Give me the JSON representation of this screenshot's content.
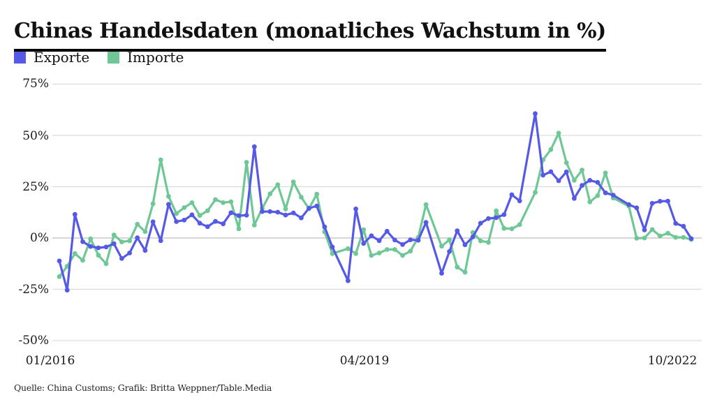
{
  "title": "Chinas Handelsdaten (monatliches Wachstum in %)",
  "source": "Quelle: China Customs; Grafik: Britta Weppner/Table.Media",
  "legend": [
    {
      "label": "Exporte",
      "color": "#5559e6"
    },
    {
      "label": "Importe",
      "color": "#6ec795"
    }
  ],
  "colors": {
    "grid": "#dcdcdc",
    "zero_line": "#c8c8c8",
    "text": "#111111"
  },
  "chart_data": {
    "type": "line",
    "title": "Chinas Handelsdaten (monatliches Wachstum in %)",
    "xlabel": "",
    "ylabel": "monatliches Wachstum in %",
    "ylim": [
      -50,
      75
    ],
    "grid": true,
    "legend_position": "top-left",
    "y_ticks": [
      "75%",
      "50%",
      "25%",
      "0%",
      "-25%",
      "-50%"
    ],
    "y_tick_values": [
      75,
      50,
      25,
      0,
      -25,
      -50
    ],
    "x_tick_labels": [
      "01/2016",
      "04/2019",
      "10/2022"
    ],
    "months": [
      "01/2016",
      "02/2016",
      "03/2016",
      "04/2016",
      "05/2016",
      "06/2016",
      "07/2016",
      "08/2016",
      "09/2016",
      "10/2016",
      "11/2016",
      "12/2016",
      "01/2017",
      "02/2017",
      "03/2017",
      "04/2017",
      "05/2017",
      "06/2017",
      "07/2017",
      "08/2017",
      "09/2017",
      "10/2017",
      "11/2017",
      "12/2017",
      "01/2018",
      "02/2018",
      "03/2018",
      "04/2018",
      "05/2018",
      "06/2018",
      "07/2018",
      "08/2018",
      "09/2018",
      "10/2018",
      "11/2018",
      "12/2018",
      "01/2019",
      "02/2019",
      "03/2019",
      "04/2019",
      "05/2019",
      "06/2019",
      "07/2019",
      "08/2019",
      "09/2019",
      "10/2019",
      "11/2019",
      "12/2019",
      "01/2020",
      "02/2020",
      "03/2020",
      "04/2020",
      "05/2020",
      "06/2020",
      "07/2020",
      "08/2020",
      "09/2020",
      "10/2020",
      "11/2020",
      "12/2020",
      "01/2021",
      "02/2021",
      "03/2021",
      "04/2021",
      "05/2021",
      "06/2021",
      "07/2021",
      "08/2021",
      "09/2021",
      "10/2021",
      "11/2021",
      "12/2021",
      "01/2022",
      "02/2022",
      "03/2022",
      "04/2022",
      "05/2022",
      "06/2022",
      "07/2022",
      "08/2022",
      "09/2022",
      "10/2022"
    ],
    "series": [
      {
        "name": "Exporte",
        "color": "#5559e6",
        "values": [
          -11.2,
          -25.4,
          11.5,
          -1.8,
          -4.1,
          -4.8,
          -4.4,
          -2.8,
          -10.0,
          -7.3,
          0.1,
          -6.1,
          7.9,
          -1.3,
          16.4,
          8.0,
          8.7,
          11.3,
          7.2,
          5.5,
          8.1,
          6.9,
          12.3,
          10.9,
          11.1,
          44.5,
          12.9,
          12.9,
          12.6,
          11.2,
          12.2,
          9.8,
          14.5,
          15.6,
          5.4,
          -4.4,
          null,
          -20.8,
          14.2,
          -2.7,
          1.1,
          -1.3,
          3.3,
          -1.0,
          -3.2,
          -0.9,
          -1.1,
          7.6,
          null,
          -17.2,
          -6.6,
          3.5,
          -3.3,
          0.5,
          7.2,
          9.5,
          9.9,
          11.4,
          21.1,
          18.1,
          null,
          60.6,
          30.6,
          32.3,
          27.9,
          32.2,
          19.3,
          25.6,
          28.1,
          27.1,
          22.0,
          20.9,
          null,
          16.3,
          14.7,
          3.9,
          16.9,
          17.9,
          18.0,
          7.1,
          5.7,
          -0.3
        ]
      },
      {
        "name": "Importe",
        "color": "#6ec795",
        "values": [
          -18.8,
          -13.8,
          -7.6,
          -10.9,
          -0.4,
          -8.4,
          -12.5,
          1.5,
          -1.9,
          -1.4,
          6.7,
          3.1,
          16.7,
          38.1,
          20.3,
          11.9,
          14.8,
          17.2,
          11.0,
          13.3,
          18.7,
          17.2,
          17.7,
          4.5,
          36.9,
          6.3,
          14.4,
          21.5,
          26.0,
          14.1,
          27.3,
          19.9,
          14.3,
          21.4,
          3.0,
          -7.6,
          null,
          -5.2,
          -7.6,
          4.0,
          -8.5,
          -7.3,
          -5.6,
          -5.6,
          -8.5,
          -6.4,
          0.3,
          16.3,
          null,
          -4.0,
          -0.9,
          -14.2,
          -16.7,
          2.7,
          -1.4,
          -2.1,
          13.2,
          4.7,
          4.5,
          6.5,
          null,
          22.2,
          38.1,
          43.1,
          51.1,
          36.7,
          28.1,
          33.1,
          17.6,
          20.6,
          31.7,
          19.5,
          null,
          15.5,
          -0.1,
          0.0,
          4.1,
          1.0,
          2.3,
          0.3,
          0.3,
          -0.7
        ]
      }
    ]
  }
}
